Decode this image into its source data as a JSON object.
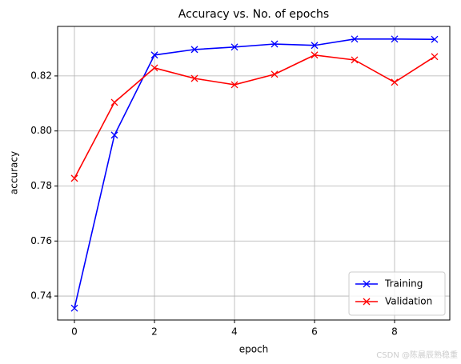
{
  "chart_data": {
    "type": "line",
    "title": "Accuracy vs. No. of epochs",
    "x_label": "epoch",
    "y_label": "accuracy",
    "x": [
      0,
      1,
      2,
      3,
      4,
      5,
      6,
      7,
      8,
      9
    ],
    "series": [
      {
        "name": "Training",
        "color": "#0000ff",
        "values": [
          0.7356,
          0.7985,
          0.8276,
          0.8296,
          0.8305,
          0.8316,
          0.8311,
          0.8334,
          0.8334,
          0.8333
        ]
      },
      {
        "name": "Validation",
        "color": "#ff0000",
        "values": [
          0.7828,
          0.8104,
          0.8229,
          0.8191,
          0.8168,
          0.8206,
          0.8276,
          0.8258,
          0.8177,
          0.827
        ]
      }
    ],
    "xlim": [
      -0.42,
      9.38
    ],
    "xticks": [
      0,
      2,
      4,
      6,
      8
    ],
    "ylim": [
      0.7313,
      0.838
    ],
    "yticks": [
      0.74,
      0.76,
      0.78,
      {
        "value": 0.8,
        "label": "0.80"
      },
      0.82
    ],
    "grid": true,
    "legend": "lower right",
    "marker": "x",
    "watermark": "CSDN @陈晨辰熟稳重"
  }
}
